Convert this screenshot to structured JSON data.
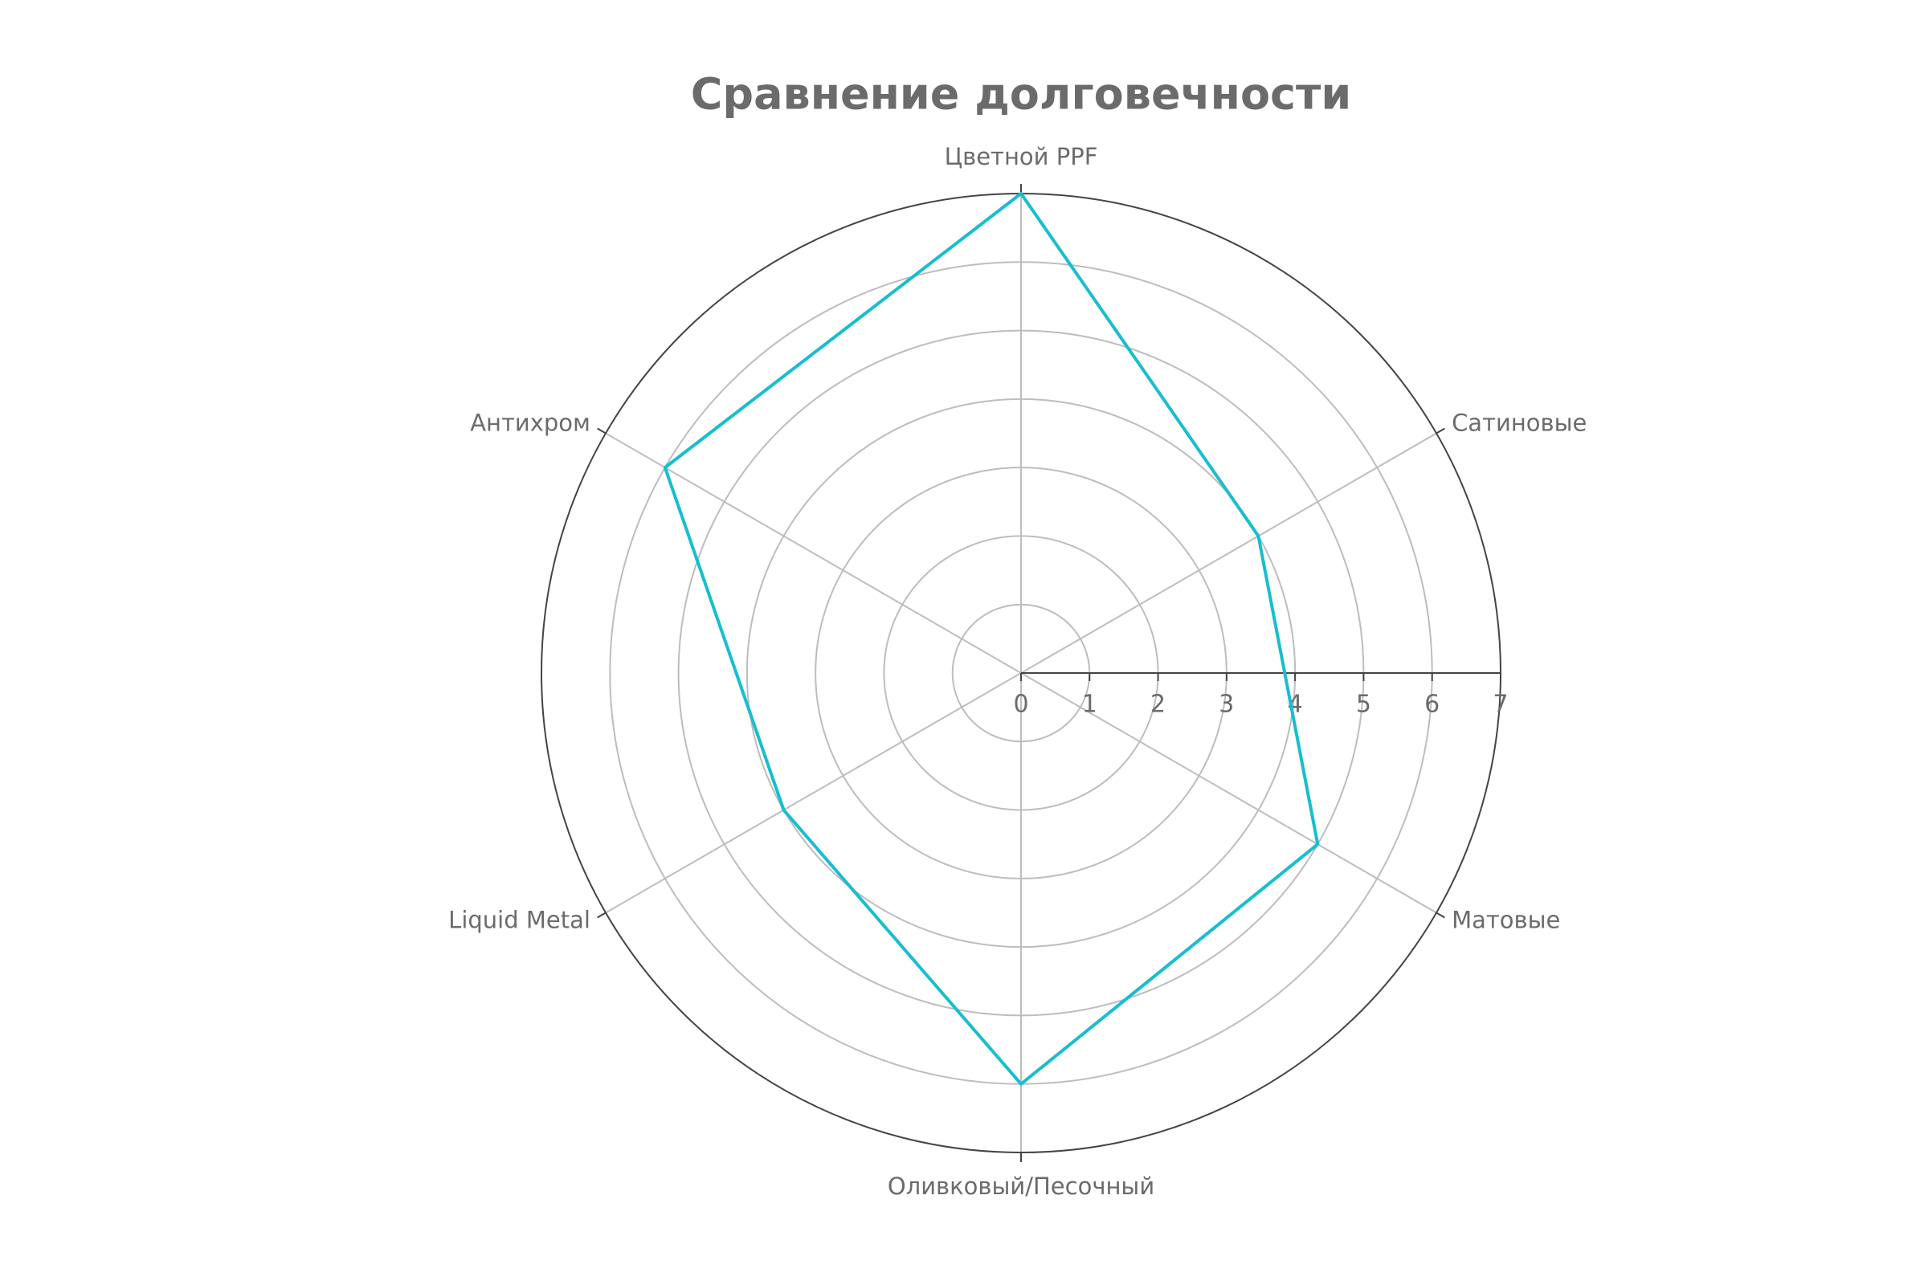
{
  "chart_data": {
    "type": "radar",
    "title": "Сравнение долговечности",
    "categories": [
      "Цветной PPF",
      "Сатиновые",
      "Матовые",
      "Оливковый/Песочный",
      "Liquid Metal",
      "Антихром"
    ],
    "values": [
      7,
      4,
      5,
      6,
      4,
      6
    ],
    "color": "#17becf",
    "rlim": [
      0,
      7
    ],
    "rticks": [
      0,
      1,
      2,
      3,
      4,
      5,
      6,
      7
    ],
    "grid": true
  }
}
